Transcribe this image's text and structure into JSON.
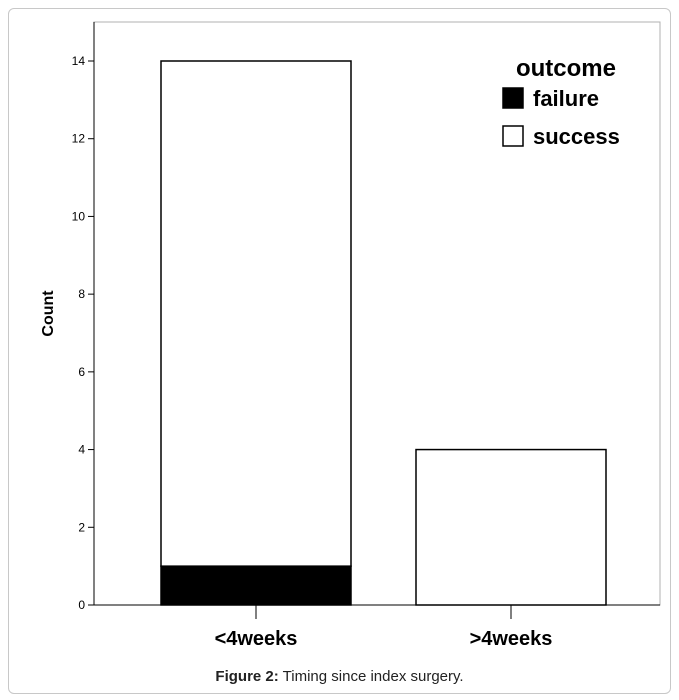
{
  "caption": {
    "label": "Figure 2:",
    "text": " Timing since index surgery."
  },
  "chart_data": {
    "type": "bar",
    "stacked": true,
    "categories": [
      "<4weeks",
      ">4weeks"
    ],
    "series": [
      {
        "name": "failure",
        "values": [
          1,
          0
        ],
        "color": "#000000"
      },
      {
        "name": "success",
        "values": [
          13,
          4
        ],
        "color": "#ffffff"
      }
    ],
    "xlabel": "",
    "ylabel": "Count",
    "ylim": [
      0,
      14
    ],
    "yticks": [
      0,
      2,
      4,
      6,
      8,
      10,
      12,
      14
    ],
    "grid": false,
    "legend": {
      "title": "outcome",
      "placement": "top-right"
    }
  }
}
